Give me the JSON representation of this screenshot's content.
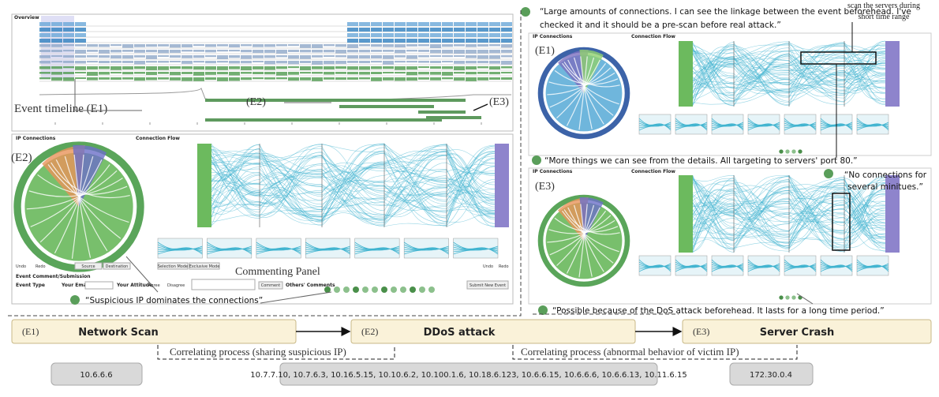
{
  "overview": {
    "title": "Overview",
    "timeline_label": "Event timeline (E1)",
    "e2_label": "(E2)",
    "e3_label": "(E3)"
  },
  "main_view": {
    "ip_title": "IP Connections",
    "flow_title": "Connection Flow",
    "event_label": "(E2)",
    "panel_label": "Commenting Panel",
    "comment_title": "Event Comment/Submission",
    "event_type": "Event Type",
    "your_email": "Your Email",
    "your_attitude": "Your Attitude",
    "agree": "Agree",
    "disagree": "Disagree",
    "comment": "Comment",
    "others": "Others' Comments",
    "submit": "Submit New Event",
    "selection": "Selection Mode",
    "exclusive": "Exclusive Mode",
    "undo": "Undo",
    "redo": "Redo",
    "source": "Source",
    "destination": "Destination",
    "quote": "“Suspicious IP dominates the connections”"
  },
  "right_top": {
    "quote_lines": [
      "“Large amounts of connections. I can see the linkage between the event beforehead. I've",
      "checked it and it should be  a pre-scan  before real attack.”"
    ],
    "event_label": "(E1)",
    "ip_title": "IP Connections",
    "flow_title": "Connection Flow",
    "annotation": [
      "scan the servers during",
      "short time range"
    ]
  },
  "right_bottom": {
    "quote_top": "“More things we can see from the details. All targeting to servers' port 80.”",
    "event_label": "(E3)",
    "ip_title": "IP Connections",
    "flow_title": "Connection Flow",
    "annotation": [
      "“No connections for",
      "several minitues.”"
    ],
    "quote_bottom": "“Possible because of the DoS attack beforehead. It lasts for a long time period.”"
  },
  "events": [
    {
      "id": "(E1)",
      "name": "Network Scan",
      "ips": "10.6.6.6"
    },
    {
      "id": "(E2)",
      "name": "DDoS attack",
      "ips": "10.7.7.10, 10.7.6.3, 10.16.5.15, 10.10.6.2, 10.100.1.6, 10.18.6.123, 10.6.6.15, 10.6.6.6, 10.6.6.13, 10.11.6.15"
    },
    {
      "id": "(E3)",
      "name": "Server Crash",
      "ips": "172.30.0.4"
    }
  ],
  "correlations": [
    "Correlating process (sharing suspicious IP)",
    "Correlating process (abnormal behavior of victim IP)"
  ]
}
